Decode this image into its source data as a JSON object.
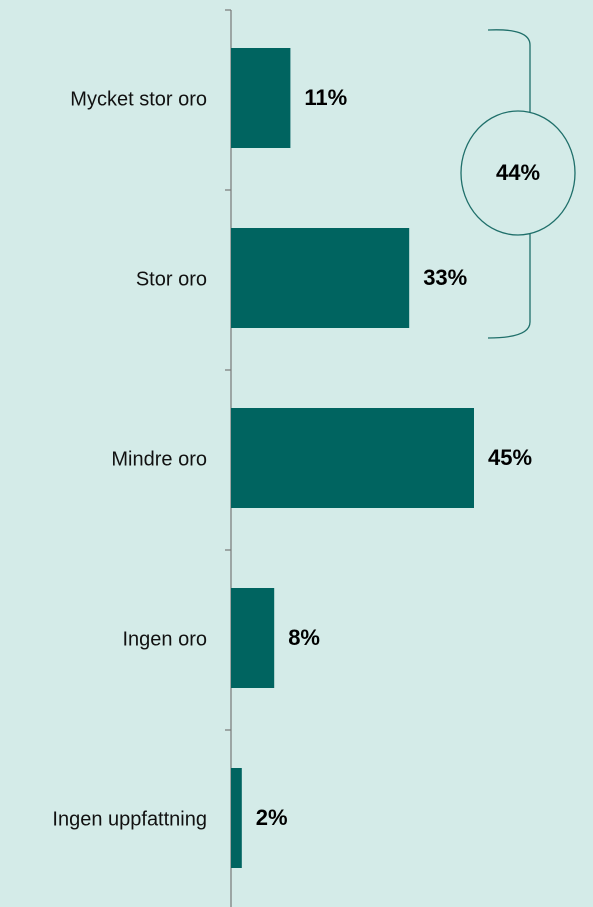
{
  "chart_data": {
    "type": "bar",
    "orientation": "horizontal",
    "categories": [
      "Mycket stor oro",
      "Stor oro",
      "Mindre oro",
      "Ingen oro",
      "Ingen uppfattning"
    ],
    "values": [
      11,
      33,
      45,
      8,
      2
    ],
    "value_labels": [
      "11%",
      "33%",
      "45%",
      "8%",
      "2%"
    ],
    "color": "#006460",
    "annotation": "44%"
  }
}
